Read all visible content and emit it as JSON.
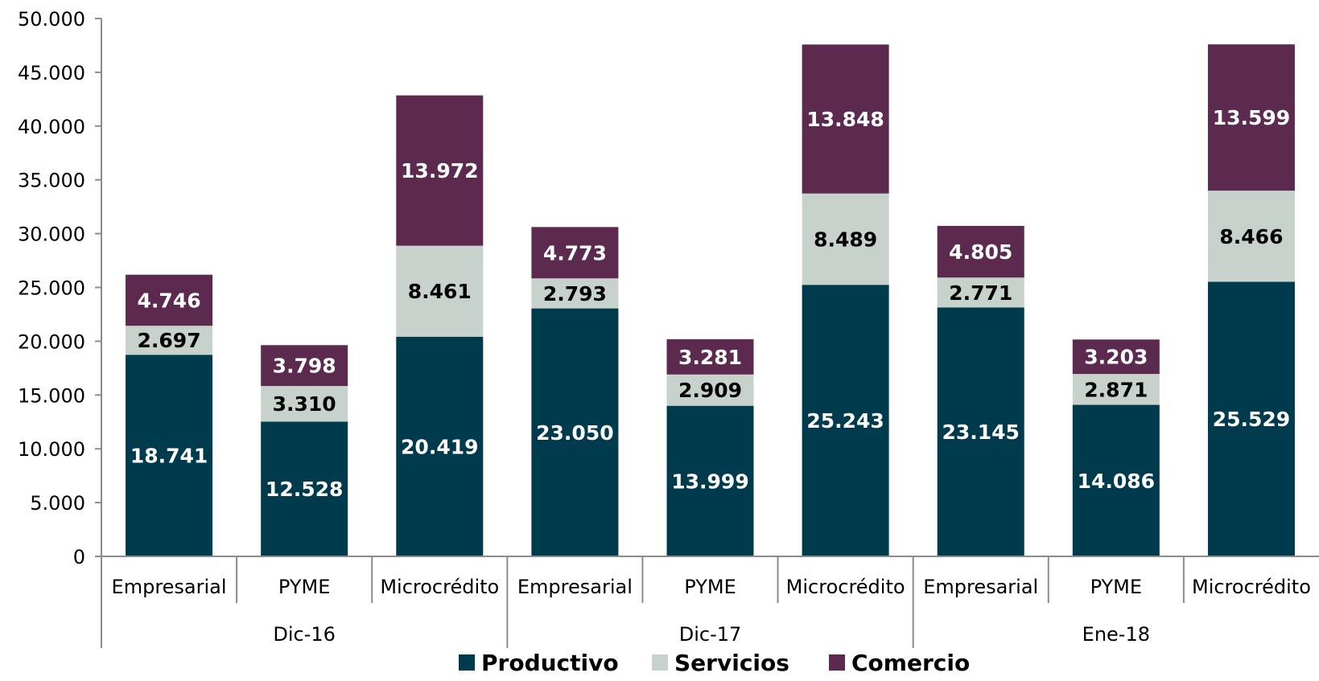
{
  "chart_data": {
    "type": "bar",
    "stacked": true,
    "groups": [
      "Dic-16",
      "Dic-17",
      "Ene-18"
    ],
    "categories": [
      "Empresarial",
      "PYME",
      "Microcrédito",
      "Empresarial",
      "PYME",
      "Microcrédito",
      "Empresarial",
      "PYME",
      "Microcrédito"
    ],
    "category_groups": [
      0,
      0,
      0,
      1,
      1,
      1,
      2,
      2,
      2
    ],
    "series": [
      {
        "name": "Productivo",
        "color": "#003a4d",
        "label_color": "#ffffff",
        "values": [
          18741,
          12528,
          20419,
          23050,
          13999,
          25243,
          23145,
          14086,
          25529
        ],
        "labels": [
          "18.741",
          "12.528",
          "20.419",
          "23.050",
          "13.999",
          "25.243",
          "23.145",
          "14.086",
          "25.529"
        ]
      },
      {
        "name": "Servicios",
        "color": "#c6d2cb",
        "label_color": "#000000",
        "values": [
          2697,
          3310,
          8461,
          2793,
          2909,
          8489,
          2771,
          2871,
          8466
        ],
        "labels": [
          "2.697",
          "3.310",
          "8.461",
          "2.793",
          "2.909",
          "8.489",
          "2.771",
          "2.871",
          "8.466"
        ]
      },
      {
        "name": "Comercio",
        "color": "#5b2a4e",
        "label_color": "#ffffff",
        "values": [
          4746,
          3798,
          13972,
          4773,
          3281,
          13848,
          4805,
          3203,
          13599
        ],
        "labels": [
          "4.746",
          "3.798",
          "13.972",
          "4.773",
          "3.281",
          "13.848",
          "4.805",
          "3.203",
          "13.599"
        ]
      }
    ],
    "ylim": [
      0,
      50000
    ],
    "y_ticks": [
      0,
      5000,
      10000,
      15000,
      20000,
      25000,
      30000,
      35000,
      40000,
      45000,
      50000
    ],
    "y_tick_labels": [
      "0",
      "5.000",
      "10.000",
      "15.000",
      "20.000",
      "25.000",
      "30.000",
      "35.000",
      "40.000",
      "45.000",
      "50.000"
    ],
    "legend_position": "bottom",
    "grid": false
  }
}
